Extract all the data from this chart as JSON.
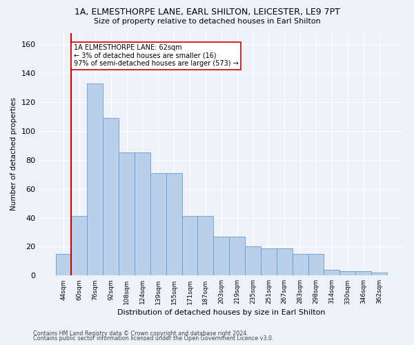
{
  "title_line1": "1A, ELMESTHORPE LANE, EARL SHILTON, LEICESTER, LE9 7PT",
  "title_line2": "Size of property relative to detached houses in Earl Shilton",
  "xlabel": "Distribution of detached houses by size in Earl Shilton",
  "ylabel": "Number of detached properties",
  "categories": [
    "44sqm",
    "60sqm",
    "76sqm",
    "92sqm",
    "108sqm",
    "124sqm",
    "139sqm",
    "155sqm",
    "171sqm",
    "187sqm",
    "203sqm",
    "219sqm",
    "235sqm",
    "251sqm",
    "267sqm",
    "283sqm",
    "298sqm",
    "314sqm",
    "330sqm",
    "346sqm",
    "362sqm"
  ],
  "values": [
    15,
    41,
    133,
    109,
    85,
    85,
    71,
    71,
    41,
    41,
    27,
    27,
    20,
    19,
    19,
    15,
    15,
    4,
    3,
    3,
    2
  ],
  "bar_color": "#b8d0ea",
  "bar_edge_color": "#6699cc",
  "property_line_idx": 1,
  "annotation_line1": "1A ELMESTHORPE LANE: 62sqm",
  "annotation_line2": "← 3% of detached houses are smaller (16)",
  "annotation_line3": "97% of semi-detached houses are larger (573) →",
  "annotation_box_facecolor": "#ffffff",
  "annotation_box_edgecolor": "#cc0000",
  "property_line_color": "#cc0000",
  "ylim": [
    0,
    168
  ],
  "yticks": [
    0,
    20,
    40,
    60,
    80,
    100,
    120,
    140,
    160
  ],
  "footer_line1": "Contains HM Land Registry data © Crown copyright and database right 2024.",
  "footer_line2": "Contains public sector information licensed under the Open Government Licence v3.0.",
  "bg_color": "#eef2f8",
  "grid_color": "#ffffff"
}
